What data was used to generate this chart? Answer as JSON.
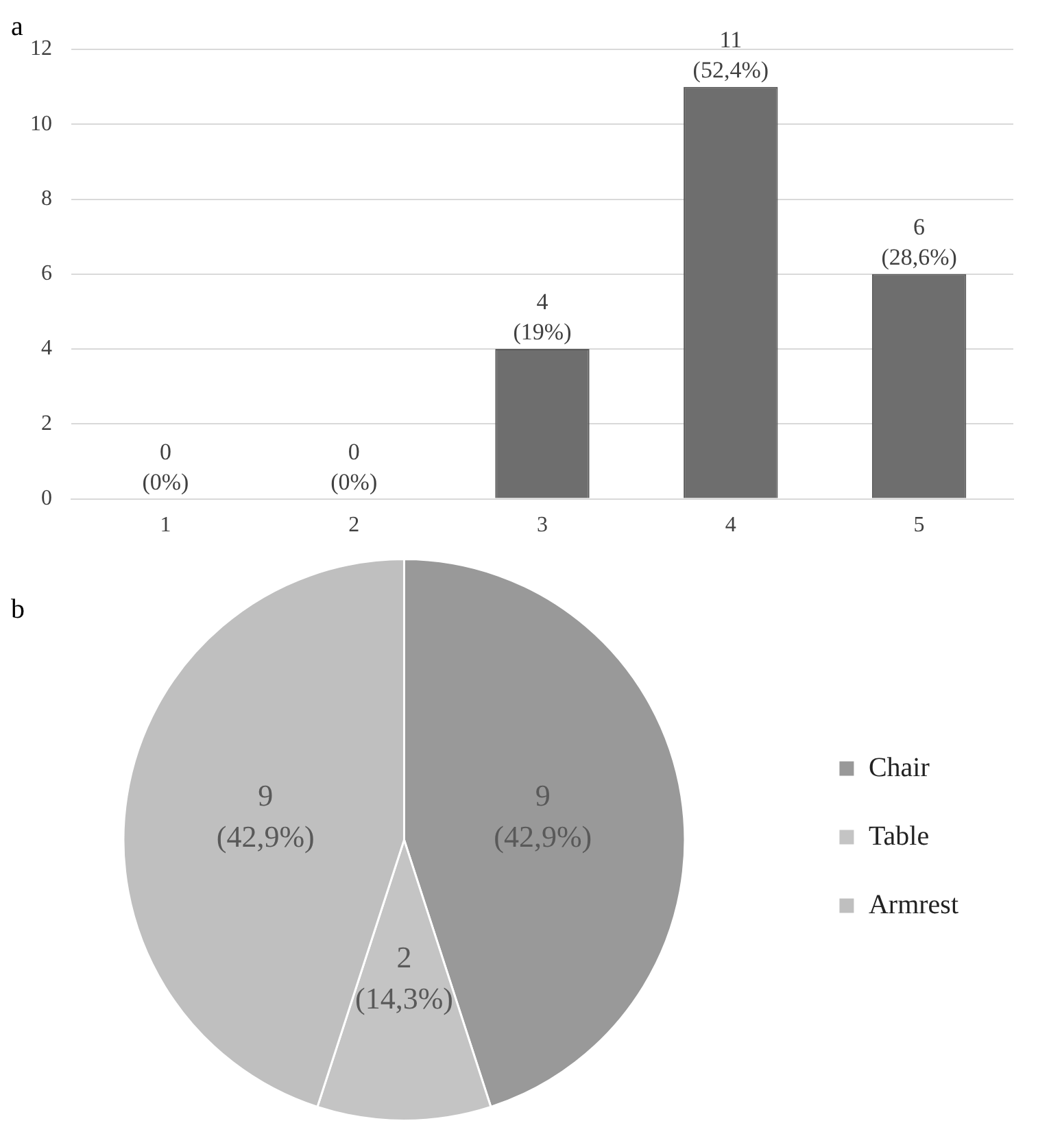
{
  "chart_data": [
    {
      "type": "bar",
      "title": "a",
      "categories": [
        "1",
        "2",
        "3",
        "4",
        "5"
      ],
      "values": [
        0,
        0,
        4,
        11,
        6
      ],
      "color": "#6e6e6e",
      "value_labels": [
        "0\n(0%)",
        "0\n(0%)",
        "4\n(19%)",
        "11\n(52,4%)",
        "6\n(28,6%)"
      ],
      "ylim": [
        0,
        12
      ],
      "yticks": [
        0,
        2,
        4,
        6,
        8,
        10,
        12
      ],
      "grid": "y",
      "legend": false
    },
    {
      "type": "pie",
      "title": "b",
      "categories": [
        "Chair",
        "Table",
        "Armrest"
      ],
      "values": [
        9,
        2,
        9
      ],
      "colors": [
        "#999999",
        "#c4c4c4",
        "#bfbfbf"
      ],
      "value_labels": [
        "9\n(42,9%)",
        "2\n(14,3%)",
        "9\n(42,9%)"
      ],
      "legend": "right"
    }
  ]
}
